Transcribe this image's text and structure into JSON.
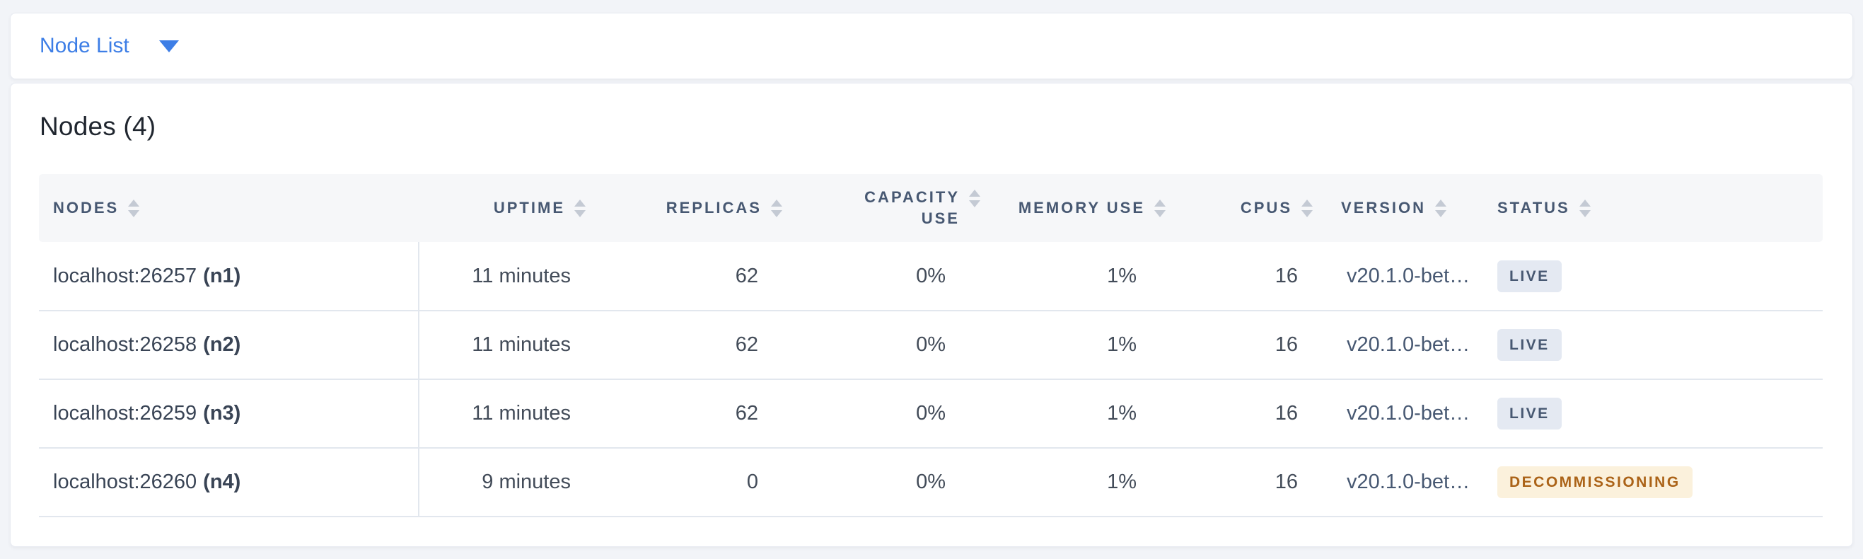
{
  "selector": {
    "label": "Node List"
  },
  "summary": {
    "title": "Nodes (4)"
  },
  "table": {
    "columns": [
      {
        "key": "nodes",
        "label": "Nodes"
      },
      {
        "key": "uptime",
        "label": "Uptime"
      },
      {
        "key": "replicas",
        "label": "Replicas"
      },
      {
        "key": "capacity_use",
        "label": "Capacity Use"
      },
      {
        "key": "memory_use",
        "label": "Memory Use"
      },
      {
        "key": "cpus",
        "label": "CPUs"
      },
      {
        "key": "version",
        "label": "Version"
      },
      {
        "key": "status",
        "label": "Status"
      }
    ],
    "rows": [
      {
        "address": "localhost:26257",
        "node_id": "(n1)",
        "uptime": "11 minutes",
        "replicas": "62",
        "capacity_use": "0%",
        "memory_use": "1%",
        "cpus": "16",
        "version": "v20.1.0-bet…",
        "status": "LIVE",
        "status_type": "live"
      },
      {
        "address": "localhost:26258",
        "node_id": "(n2)",
        "uptime": "11 minutes",
        "replicas": "62",
        "capacity_use": "0%",
        "memory_use": "1%",
        "cpus": "16",
        "version": "v20.1.0-bet…",
        "status": "LIVE",
        "status_type": "live"
      },
      {
        "address": "localhost:26259",
        "node_id": "(n3)",
        "uptime": "11 minutes",
        "replicas": "62",
        "capacity_use": "0%",
        "memory_use": "1%",
        "cpus": "16",
        "version": "v20.1.0-bet…",
        "status": "LIVE",
        "status_type": "live"
      },
      {
        "address": "localhost:26260",
        "node_id": "(n4)",
        "uptime": "9 minutes",
        "replicas": "0",
        "capacity_use": "0%",
        "memory_use": "1%",
        "cpus": "16",
        "version": "v20.1.0-bet…",
        "status": "DECOMMISSIONING",
        "status_type": "decommissioning"
      }
    ]
  },
  "colors": {
    "accent_blue": "#3d7ee6",
    "page_background": "#f2f4f8",
    "header_band": "#f6f7f9",
    "header_text": "#475872",
    "row_border": "#e2e7ee",
    "live_badge_bg": "#e4e9f2",
    "live_badge_text": "#475872",
    "decommissioning_badge_bg": "#fbf1dc",
    "decommissioning_badge_text": "#ab6318"
  }
}
